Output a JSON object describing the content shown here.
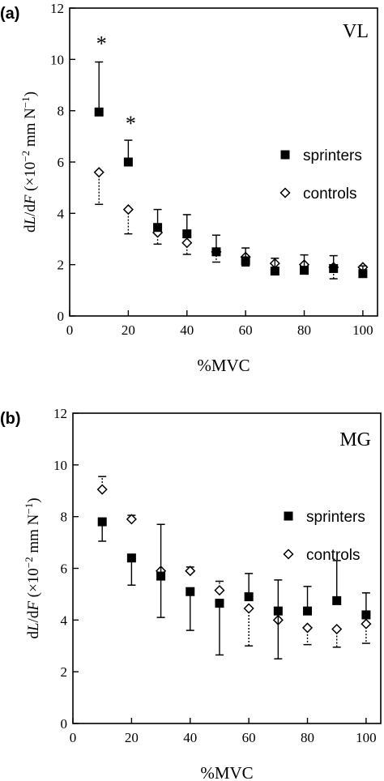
{
  "chart_data": [
    {
      "type": "scatter",
      "panel_label": "(a)",
      "muscle": "VL",
      "xlabel": "%MVC",
      "ylabel_parts": [
        "d",
        "L",
        "/d",
        "F",
        " (×10",
        "−2",
        " mm N",
        "−1",
        ")"
      ],
      "xlim": [
        0,
        105
      ],
      "ylim": [
        0,
        12
      ],
      "xticks": [
        0,
        20,
        40,
        60,
        80,
        100
      ],
      "yticks": [
        0,
        2,
        4,
        6,
        8,
        10,
        12
      ],
      "grid": false,
      "legend_position": "right",
      "annotations": [
        {
          "text": "*",
          "x": 10
        },
        {
          "text": "*",
          "x": 20
        }
      ],
      "series": [
        {
          "name": "sprinters",
          "marker": "filled-square",
          "x": [
            10,
            20,
            30,
            40,
            50,
            60,
            70,
            80,
            90,
            100
          ],
          "y": [
            7.95,
            6.0,
            3.45,
            3.2,
            2.5,
            2.15,
            1.75,
            1.78,
            1.85,
            1.65
          ],
          "err_up": [
            1.95,
            0.85,
            0.7,
            0.75,
            0.65,
            0.5,
            0.5,
            0.6,
            0.5,
            0.3
          ],
          "err_down": [
            0,
            0,
            0,
            0,
            0,
            0,
            0,
            0,
            0,
            0
          ]
        },
        {
          "name": "controls",
          "marker": "open-diamond",
          "x": [
            10,
            20,
            30,
            40,
            50,
            60,
            70,
            80,
            90,
            100
          ],
          "y": [
            5.6,
            4.15,
            3.25,
            2.85,
            2.5,
            2.3,
            2.05,
            2.0,
            1.9,
            1.9
          ],
          "err_up": [
            0,
            0,
            0,
            0,
            0,
            0,
            0,
            0,
            0,
            0
          ],
          "err_down": [
            1.25,
            0.95,
            0.45,
            0.45,
            0.4,
            0.35,
            0.35,
            0.35,
            0.45,
            0.2
          ]
        }
      ]
    },
    {
      "type": "scatter",
      "panel_label": "(b)",
      "muscle": "MG",
      "xlabel": "%MVC",
      "ylabel_parts": [
        "d",
        "L",
        "/d",
        "F",
        " (×10",
        "−2",
        " mm N",
        "−1",
        ")"
      ],
      "xlim": [
        0,
        105
      ],
      "ylim": [
        0,
        12
      ],
      "xticks": [
        0,
        20,
        40,
        60,
        80,
        100
      ],
      "yticks": [
        0,
        2,
        4,
        6,
        8,
        10,
        12
      ],
      "grid": false,
      "legend_position": "right",
      "annotations": [],
      "series": [
        {
          "name": "sprinters",
          "marker": "filled-square",
          "x": [
            10,
            20,
            30,
            40,
            50,
            60,
            70,
            80,
            90,
            100
          ],
          "y": [
            7.8,
            6.4,
            5.7,
            5.1,
            4.65,
            4.9,
            4.35,
            4.35,
            4.75,
            4.2
          ],
          "err_up": [
            0,
            0,
            2.0,
            0,
            0,
            0.9,
            1.2,
            0.95,
            1.55,
            0.85
          ],
          "err_down": [
            0.75,
            1.05,
            1.6,
            1.5,
            2.0,
            0,
            1.85,
            0,
            0,
            0
          ]
        },
        {
          "name": "controls",
          "marker": "open-diamond",
          "x": [
            10,
            20,
            30,
            40,
            50,
            60,
            70,
            80,
            90,
            100
          ],
          "y": [
            9.05,
            7.9,
            5.9,
            5.9,
            5.15,
            4.45,
            4.0,
            3.7,
            3.65,
            3.85
          ],
          "err_up": [
            0.5,
            0.15,
            0,
            0.15,
            0.35,
            0,
            0,
            0,
            0,
            0
          ],
          "err_down": [
            0,
            0,
            0,
            0,
            0,
            1.45,
            0,
            0.65,
            0.7,
            0.75
          ]
        }
      ]
    }
  ]
}
